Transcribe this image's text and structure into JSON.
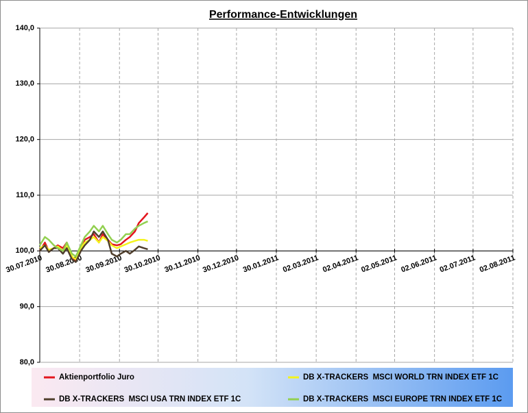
{
  "chart_data": {
    "type": "line",
    "title": "Performance-Entwicklungen",
    "x": [
      "30.07.2010",
      "03.08.2010",
      "06.08.2010",
      "10.08.2010",
      "13.08.2010",
      "17.08.2010",
      "20.08.2010",
      "24.08.2010",
      "27.08.2010",
      "31.08.2010",
      "03.09.2010",
      "07.09.2010",
      "10.09.2010",
      "14.09.2010",
      "17.09.2010",
      "21.09.2010",
      "24.09.2010",
      "28.09.2010",
      "01.10.2010",
      "05.10.2010",
      "08.10.2010",
      "12.10.2010",
      "15.10.2010",
      "19.10.2010",
      "22.10.2010"
    ],
    "series": [
      {
        "name": "Aktienportfolio Juro",
        "color": "#e3151d",
        "values": [
          100,
          101.5,
          100,
          100.5,
          101,
          100.5,
          101.5,
          99,
          98.3,
          100.5,
          102,
          102.5,
          103,
          101.5,
          103,
          102,
          101.2,
          101,
          101.2,
          102,
          102.5,
          103.5,
          105,
          106,
          106.8
        ]
      },
      {
        "name": "DB X-TRACKERS  MSCI WORLD TRN INDEX ETF 1C",
        "color": "#f4f41c",
        "values": [
          100.5,
          101,
          100.2,
          100.5,
          100.8,
          100,
          101,
          99,
          98.5,
          100.5,
          101.5,
          102,
          102.5,
          101.5,
          102.5,
          101.8,
          101,
          100.5,
          100.8,
          101.2,
          101.5,
          101.8,
          102,
          102,
          101.8
        ]
      },
      {
        "name": "DB X-TRACKERS  MSCI USA TRN INDEX ETF 1C",
        "color": "#4f3e2c",
        "values": [
          100,
          101,
          99.8,
          100.5,
          100.5,
          99.5,
          100.5,
          98.5,
          98,
          100,
          101,
          102,
          103.5,
          102.5,
          103.5,
          102,
          99.5,
          99,
          99.5,
          100,
          99.5,
          100.2,
          100.8,
          100.5,
          100.3
        ]
      },
      {
        "name": "DB X-TRACKERS  MSCI EUROPE TRN INDEX ETF 1C",
        "color": "#92d050",
        "values": [
          101,
          102.5,
          102,
          101,
          100.5,
          100,
          101.5,
          99.5,
          99,
          101,
          102.5,
          103.5,
          104.5,
          103.5,
          104.5,
          103,
          102,
          101.5,
          102,
          103,
          103,
          104,
          104.5,
          105,
          105.3
        ]
      }
    ],
    "ylim": [
      80,
      140
    ],
    "yticks": [
      {
        "value": 80,
        "label": "80,0"
      },
      {
        "value": 90,
        "label": "90,0"
      },
      {
        "value": 100,
        "label": "100,0"
      },
      {
        "value": 110,
        "label": "110,0"
      },
      {
        "value": 120,
        "label": "120,0"
      },
      {
        "value": 130,
        "label": "130,0"
      },
      {
        "value": 140,
        "label": "140,0"
      }
    ],
    "xlim": [
      "30.07.2010",
      "02.08.2011"
    ],
    "xticks": [
      "30.07.2010",
      "30.08.2010",
      "30.09.2010",
      "30.10.2010",
      "30.11.2010",
      "30.12.2010",
      "30.01.2011",
      "02.03.2011",
      "02.04.2011",
      "02.05.2011",
      "02.06.2011",
      "02.07.2011",
      "02.08.2011"
    ],
    "x_axis_crosses": 100,
    "grid": true
  }
}
